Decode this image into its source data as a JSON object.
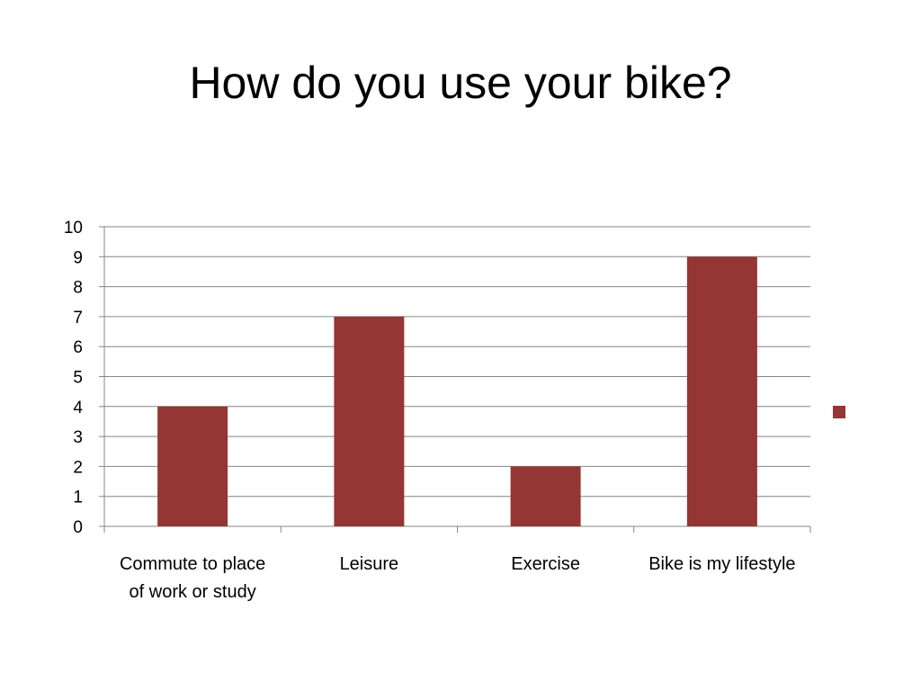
{
  "slide": {
    "title": "How do you use your bike?"
  },
  "chart_data": {
    "type": "bar",
    "title": "",
    "xlabel": "",
    "ylabel": "",
    "categories": [
      [
        "Commute to place",
        "of work or study"
      ],
      [
        "Leisure"
      ],
      [
        "Exercise"
      ],
      [
        "Bike is my lifestyle"
      ]
    ],
    "series": [
      {
        "values": [
          4,
          7,
          2,
          9
        ],
        "color": "#943634"
      }
    ],
    "ylim": [
      0,
      10
    ],
    "yticks": [
      0,
      1,
      2,
      3,
      4,
      5,
      6,
      7,
      8,
      9,
      10
    ],
    "grid": true,
    "gridline_color": "#868686",
    "legend": {
      "position": "right",
      "entries": [
        ""
      ]
    }
  }
}
